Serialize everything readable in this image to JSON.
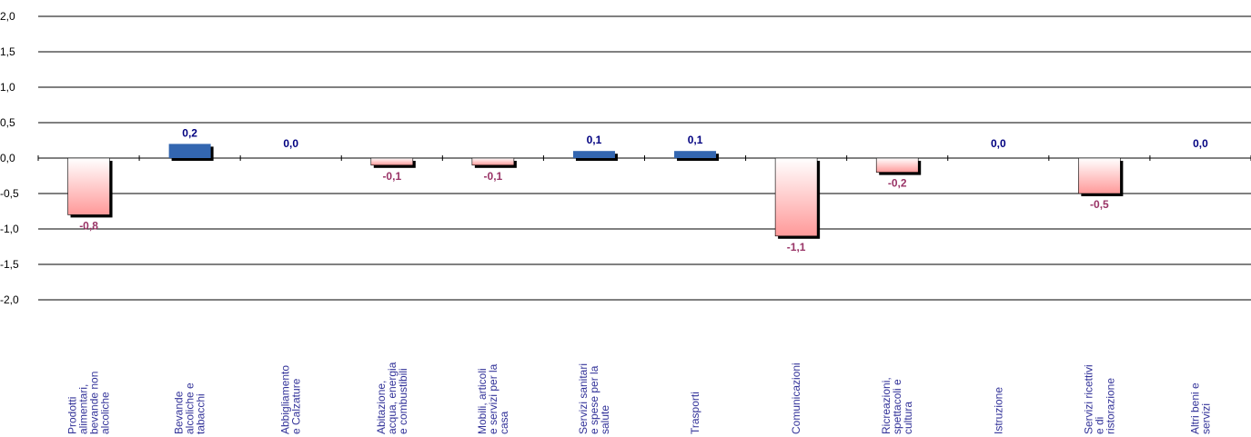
{
  "chart_data": {
    "type": "bar",
    "categories": [
      [
        "Prodotti",
        "alimentari,",
        "bevande non",
        "alcoliche"
      ],
      [
        "Bevande",
        "alcoliche e",
        "tabacchi"
      ],
      [
        "Abbigliamento",
        "e Calzature"
      ],
      [
        "Abitazione,",
        "acqua, energia",
        "e combustibili"
      ],
      [
        "Mobili, articoli",
        "e  servizi per la",
        "casa"
      ],
      [
        "Servizi sanitari",
        "e spese per la",
        "salute"
      ],
      [
        "Trasporti"
      ],
      [
        "Comunicazioni"
      ],
      [
        "Ricreazioni,",
        "spettacoli e",
        "cultura"
      ],
      [
        "Istruzione"
      ],
      [
        "Servizi ricettivi",
        "e di",
        "ristorazione"
      ],
      [
        "Altri beni e",
        "servizi"
      ]
    ],
    "values": [
      -0.8,
      0.2,
      0.0,
      -0.1,
      -0.1,
      0.1,
      0.1,
      -1.1,
      -0.2,
      0.0,
      -0.5,
      0.0
    ],
    "value_labels": [
      "-0,8",
      "0,2",
      "0,0",
      "-0,1",
      "-0,1",
      "0,1",
      "0,1",
      "-1,1",
      "-0,2",
      "0,0",
      "-0,5",
      "0,0"
    ],
    "yticks": [
      "2,0",
      "1,5",
      "1,0",
      "0,5",
      "0,0",
      "-0,5",
      "-1,0",
      "-1,5",
      "-2,0"
    ],
    "ylim": [
      -2.0,
      2.0
    ],
    "grid": true,
    "colors": {
      "positive": "#3366b0",
      "negative": "#ffbdbd",
      "positive_label": "#000080",
      "negative_label": "#993366",
      "category_label": "#333399",
      "grid": "#000000"
    }
  }
}
